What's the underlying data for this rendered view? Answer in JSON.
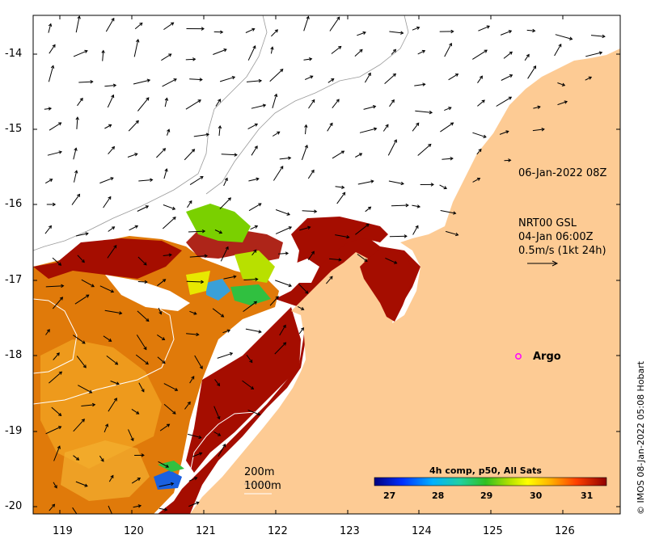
{
  "map": {
    "lon_ticks": [
      "119",
      "120",
      "121",
      "122",
      "123",
      "124",
      "125",
      "126"
    ],
    "lat_ticks": [
      "-14",
      "-15",
      "-16",
      "-17",
      "-18",
      "-19",
      "-20"
    ],
    "lon_range": [
      118.6,
      126.7
    ],
    "lat_range": [
      -20.1,
      -13.5
    ]
  },
  "annotations": {
    "date_label": "06-Jan-2022 08Z",
    "current_product": "NRT00 GSL",
    "current_time": "04-Jan 06:00Z",
    "current_scale": "0.5m/s (1kt 24h)",
    "argo_label": "Argo",
    "contour_200": "200m",
    "contour_1000": "1000m"
  },
  "colorbar": {
    "title": "4h comp, p50, All Sats",
    "labels": [
      "27",
      "28",
      "29",
      "30",
      "31"
    ],
    "range": [
      26.6,
      31.6
    ]
  },
  "credit": "© IMOS 08-Jan-2022 05:08 Hobart",
  "colors": {
    "land": "#fdcb94",
    "warm_sst": "#a50d00",
    "mid_sst": "#e57b00",
    "cool_sst": "#3a9bd6",
    "argo_marker": "#ff00ff"
  }
}
